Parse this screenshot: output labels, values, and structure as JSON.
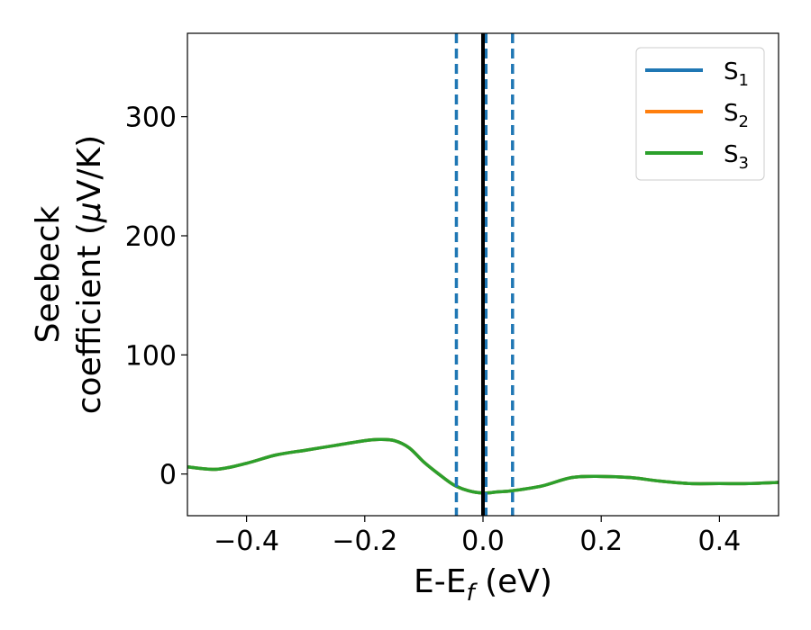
{
  "chart_data": {
    "type": "line",
    "xlabel": {
      "main": "E-E",
      "sub": "f",
      "suffix": " (eV)"
    },
    "ylabel": {
      "line1": "Seebeck",
      "line2_text": "coefficient  (",
      "line2_mu": "μ",
      "line2_unit": "V/K)"
    },
    "xlim": [
      -0.5,
      0.5
    ],
    "ylim": [
      -35,
      370
    ],
    "xticks": [
      {
        "value": -0.4,
        "label": "−0.4"
      },
      {
        "value": -0.2,
        "label": "−0.2"
      },
      {
        "value": 0.0,
        "label": "0.0"
      },
      {
        "value": 0.2,
        "label": "0.2"
      },
      {
        "value": 0.4,
        "label": "0.4"
      }
    ],
    "yticks": [
      {
        "value": 0,
        "label": "0"
      },
      {
        "value": 100,
        "label": "100"
      },
      {
        "value": 200,
        "label": "200"
      },
      {
        "value": 300,
        "label": "300"
      }
    ],
    "grid": false,
    "legend_position": "top-right",
    "x": [
      -0.5,
      -0.45,
      -0.4,
      -0.35,
      -0.3,
      -0.25,
      -0.2,
      -0.175,
      -0.15,
      -0.125,
      -0.1,
      -0.075,
      -0.05,
      -0.025,
      0.0,
      0.025,
      0.05,
      0.1,
      0.15,
      0.2,
      0.25,
      0.3,
      0.35,
      0.4,
      0.45,
      0.5
    ],
    "series": [
      {
        "name": "S",
        "sub": "1",
        "color": "#1f77b4",
        "values": [
          6,
          4,
          9,
          16,
          20,
          24,
          28,
          29,
          28,
          22,
          10,
          0,
          -9,
          -14,
          -16,
          -15,
          -14,
          -10,
          -3,
          -2,
          -3,
          -6,
          -8,
          -8,
          -8,
          -7
        ]
      },
      {
        "name": "S",
        "sub": "2",
        "color": "#ff7f0e",
        "values": [
          6,
          4,
          9,
          16,
          20,
          24,
          28,
          29,
          28,
          22,
          10,
          0,
          -9,
          -14,
          -16,
          -15,
          -14,
          -10,
          -3,
          -2,
          -3,
          -6,
          -8,
          -8,
          -8,
          -7
        ]
      },
      {
        "name": "S",
        "sub": "3",
        "color": "#2ca02c",
        "values": [
          6,
          4,
          9,
          16,
          20,
          24,
          28,
          29,
          28,
          22,
          10,
          0,
          -9,
          -14,
          -16,
          -15,
          -14,
          -10,
          -3,
          -2,
          -3,
          -6,
          -8,
          -8,
          -8,
          -7
        ]
      }
    ],
    "vlines": [
      {
        "x": -0.045,
        "style": "dashed",
        "color": "#1f77b4"
      },
      {
        "x": 0.005,
        "style": "dashed",
        "color": "#1f77b4"
      },
      {
        "x": 0.05,
        "style": "dashed",
        "color": "#1f77b4"
      },
      {
        "x": 0.0,
        "style": "solid",
        "color": "#000000"
      }
    ]
  }
}
